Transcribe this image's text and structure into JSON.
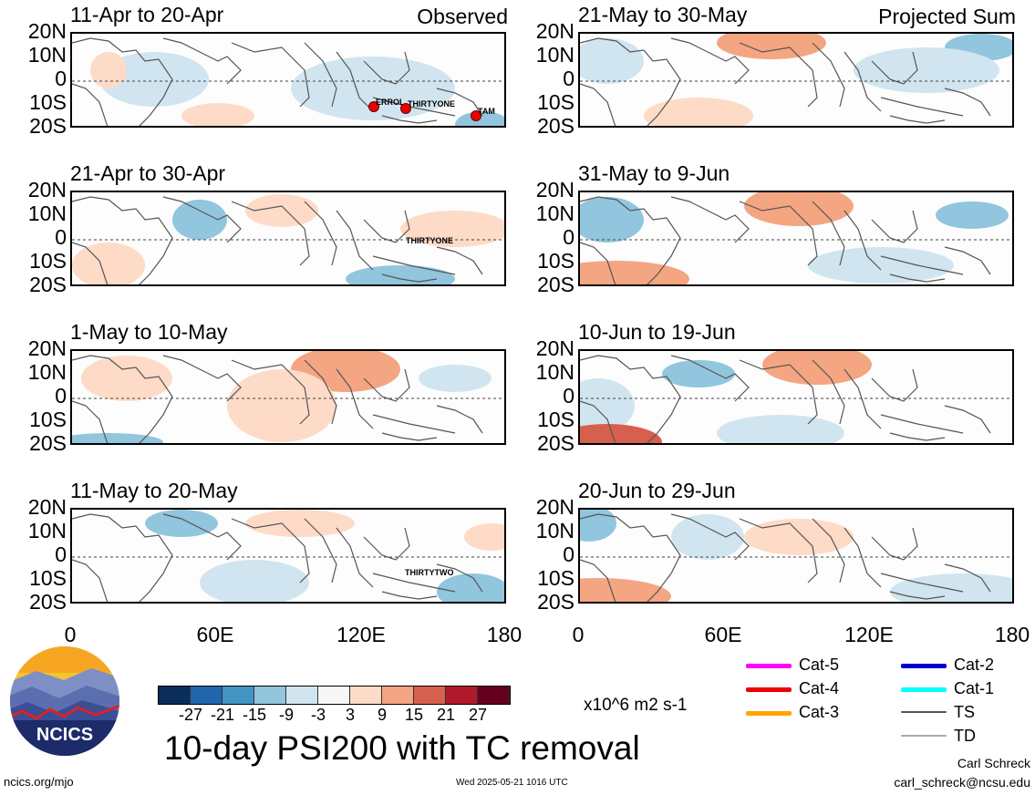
{
  "panels_left": [
    {
      "period": "11-Apr to 20-Apr",
      "tag": "Observed",
      "tcs": [
        "ERROL",
        "THIRTYONE",
        "TAM"
      ]
    },
    {
      "period": "21-Apr to 30-Apr",
      "tag": "",
      "tcs": [
        "THIRTYONE"
      ]
    },
    {
      "period": "1-May to 10-May",
      "tag": "",
      "tcs": []
    },
    {
      "period": "11-May to 20-May",
      "tag": "",
      "tcs": [
        "THIRTYTWO"
      ]
    }
  ],
  "panels_right": [
    {
      "period": "21-May to 30-May",
      "tag": "Projected Sum"
    },
    {
      "period": "31-May to 9-Jun",
      "tag": ""
    },
    {
      "period": "10-Jun to 19-Jun",
      "tag": ""
    },
    {
      "period": "20-Jun to 29-Jun",
      "tag": ""
    }
  ],
  "lat_labels": [
    "20N",
    "10N",
    "0",
    "10S",
    "20S"
  ],
  "lon_labels": [
    "0",
    "60E",
    "120E",
    "180"
  ],
  "colorbar": {
    "colors": [
      "#0a2d5c",
      "#2166ac",
      "#4393c3",
      "#92c5de",
      "#d1e5f0",
      "#f7f7f7",
      "#fddbc7",
      "#f4a582",
      "#d6604d",
      "#b2182b",
      "#67001f"
    ],
    "ticks": [
      "-27",
      "-21",
      "-15",
      "-9",
      "-3",
      "3",
      "9",
      "15",
      "21",
      "27"
    ],
    "units": "x10^6 m2 s-1"
  },
  "title": "10-day PSI200 with TC removal",
  "logo_text": "NCICS",
  "legend": [
    {
      "label": "Cat-5",
      "color": "#ff00ff"
    },
    {
      "label": "Cat-4",
      "color": "#ee0000"
    },
    {
      "label": "Cat-3",
      "color": "#ffa500"
    },
    {
      "label": "Cat-2",
      "color": "#0000cc"
    },
    {
      "label": "Cat-1",
      "color": "#00ffff"
    },
    {
      "label": "TS",
      "color": "#555555"
    },
    {
      "label": "TD",
      "color": "#aaaaaa"
    }
  ],
  "footer": {
    "left": "ncics.org/mjo",
    "center": "Wed 2025-05-21 1016 UTC",
    "author": "Carl Schreck",
    "email": "carl_schreck@ncsu.edu"
  },
  "chart_data": {
    "type": "heatmap",
    "title": "10-day PSI200 with TC removal",
    "units": "x10^6 m2 s-1",
    "x_range": [
      0,
      180
    ],
    "y_range": [
      -20,
      20
    ],
    "levels": [
      -27,
      -21,
      -15,
      -9,
      -3,
      3,
      9,
      15,
      21,
      27
    ]
  }
}
